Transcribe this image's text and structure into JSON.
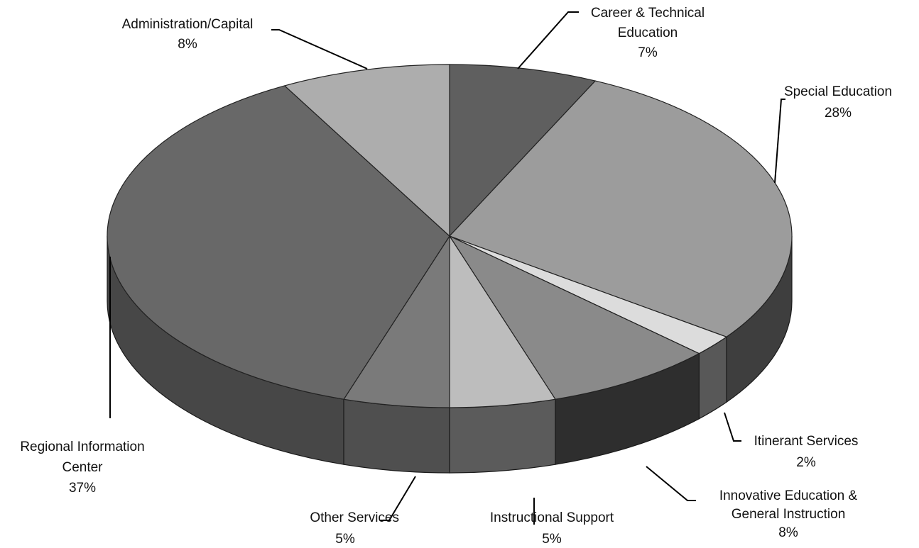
{
  "chart_data": {
    "type": "pie",
    "style": "3d",
    "start_angle_deg": -90,
    "direction": "clockwise",
    "slices": [
      {
        "name_lines": [
          "Career & Technical",
          "Education"
        ],
        "percent_text": "7%",
        "value": 7,
        "top_color": "#5f5f5f",
        "side_color": "#454545"
      },
      {
        "name_lines": [
          "Special Education"
        ],
        "percent_text": "28%",
        "value": 28,
        "top_color": "#9c9c9c",
        "side_color": "#3e3e3e"
      },
      {
        "name_lines": [
          "Itinerant Services"
        ],
        "percent_text": "2%",
        "value": 2,
        "top_color": "#dcdcdc",
        "side_color": "#585858"
      },
      {
        "name_lines": [
          "Innovative Education &",
          "General Instruction"
        ],
        "percent_text": "8%",
        "value": 8,
        "top_color": "#8a8a8a",
        "side_color": "#2e2e2e"
      },
      {
        "name_lines": [
          "Instructional  Support"
        ],
        "percent_text": "5%",
        "value": 5,
        "top_color": "#bdbdbd",
        "side_color": "#5b5b5b"
      },
      {
        "name_lines": [
          "Other Services"
        ],
        "percent_text": "5%",
        "value": 5,
        "top_color": "#7a7a7a",
        "side_color": "#4f4f4f"
      },
      {
        "name_lines": [
          "Regional Information",
          "Center"
        ],
        "percent_text": "37%",
        "value": 37,
        "top_color": "#686868",
        "side_color": "#474747"
      },
      {
        "name_lines": [
          "Administration/Capital"
        ],
        "percent_text": "8%",
        "value": 8,
        "top_color": "#adadad",
        "side_color": "#5a5a5a"
      }
    ]
  }
}
